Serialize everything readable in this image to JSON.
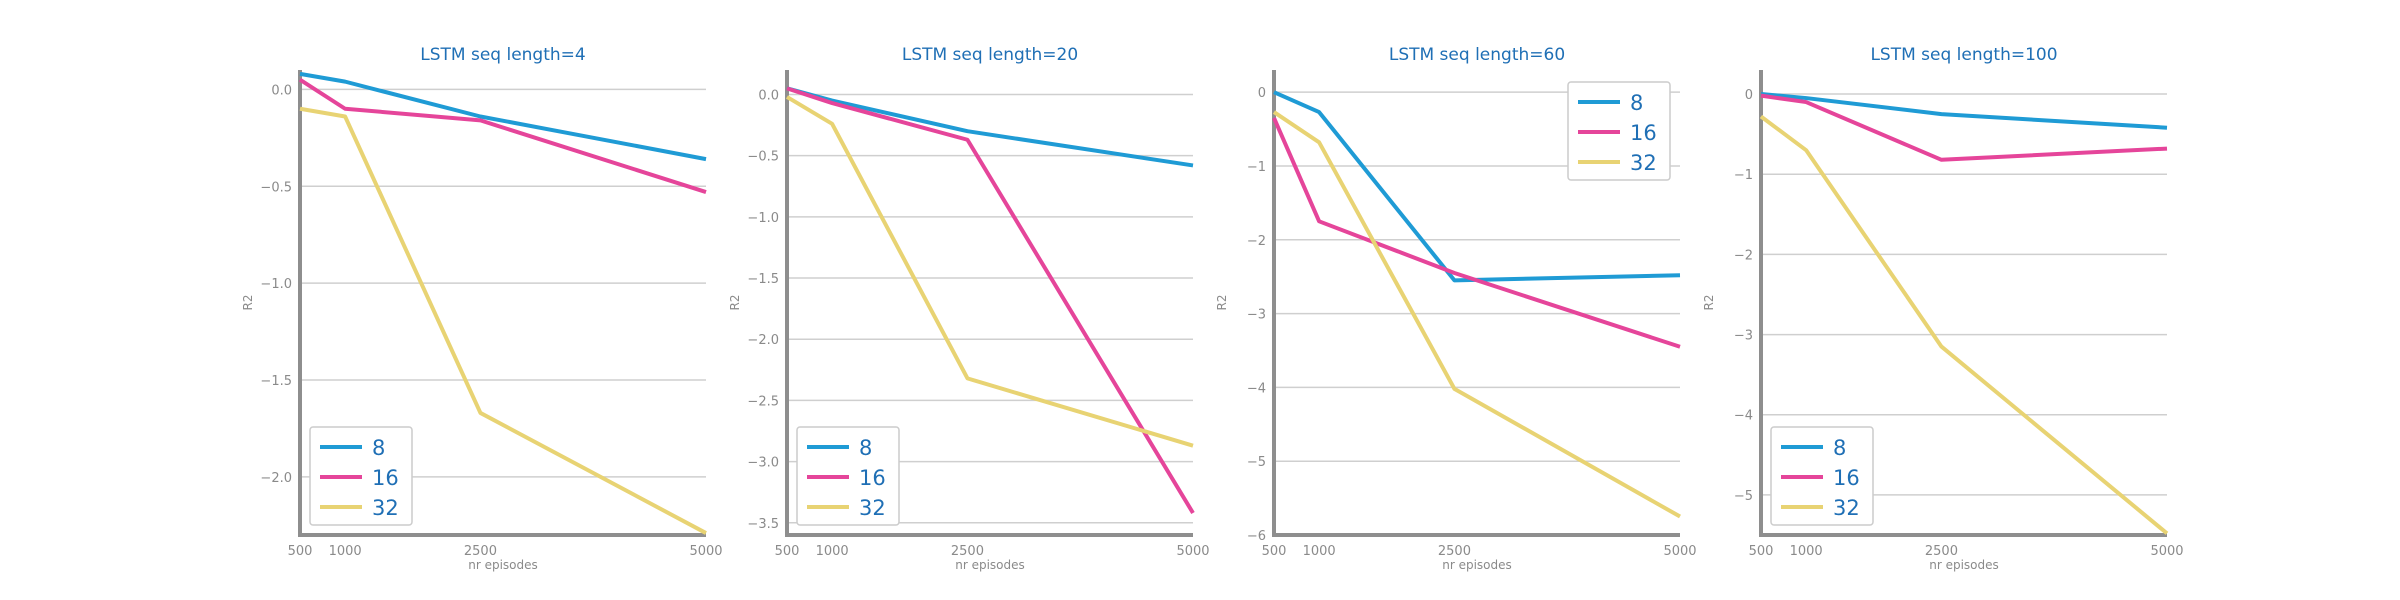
{
  "chart_data": [
    {
      "type": "line",
      "title": "LSTM seq length=4",
      "xlabel": "nr episodes",
      "ylabel": "R2",
      "x": [
        500,
        1000,
        2500,
        5000
      ],
      "xticks": [
        "500",
        "1000",
        "2500",
        "5000"
      ],
      "xlim": [
        500,
        5000
      ],
      "ylim": [
        -2.3,
        0.1
      ],
      "yticks": [
        0.0,
        -0.5,
        -1.0,
        -1.5,
        -2.0
      ],
      "ytick_labels": [
        "0.0",
        "−0.5",
        "−1.0",
        "−1.5",
        "−2.0"
      ],
      "grid": "horizontal",
      "legend": "lower-left",
      "series": [
        {
          "name": "8",
          "color": "#1f9bd5",
          "values": [
            0.08,
            0.04,
            -0.14,
            -0.36
          ]
        },
        {
          "name": "16",
          "color": "#e5459a",
          "values": [
            0.05,
            -0.1,
            -0.16,
            -0.53
          ]
        },
        {
          "name": "32",
          "color": "#e8d373",
          "values": [
            -0.1,
            -0.14,
            -1.67,
            -2.29
          ]
        }
      ]
    },
    {
      "type": "line",
      "title": "LSTM seq length=20",
      "xlabel": "nr episodes",
      "ylabel": "R2",
      "x": [
        500,
        1000,
        2500,
        5000
      ],
      "xticks": [
        "500",
        "1000",
        "2500",
        "5000"
      ],
      "xlim": [
        500,
        5000
      ],
      "ylim": [
        -3.6,
        0.2
      ],
      "yticks": [
        0.0,
        -0.5,
        -1.0,
        -1.5,
        -2.0,
        -2.5,
        -3.0,
        -3.5
      ],
      "ytick_labels": [
        "0.0",
        "−0.5",
        "−1.0",
        "−1.5",
        "−2.0",
        "−2.5",
        "−3.0",
        "−3.5"
      ],
      "grid": "horizontal",
      "legend": "lower-left",
      "series": [
        {
          "name": "8",
          "color": "#1f9bd5",
          "values": [
            0.05,
            -0.05,
            -0.3,
            -0.58
          ]
        },
        {
          "name": "16",
          "color": "#e5459a",
          "values": [
            0.05,
            -0.07,
            -0.37,
            -3.42
          ]
        },
        {
          "name": "32",
          "color": "#e8d373",
          "values": [
            -0.02,
            -0.24,
            -2.32,
            -2.87
          ]
        }
      ]
    },
    {
      "type": "line",
      "title": "LSTM seq length=60",
      "xlabel": "nr episodes",
      "ylabel": "R2",
      "x": [
        500,
        1000,
        2500,
        5000
      ],
      "xticks": [
        "500",
        "1000",
        "2500",
        "5000"
      ],
      "xlim": [
        500,
        5000
      ],
      "ylim": [
        -6.0,
        0.3
      ],
      "yticks": [
        0,
        -1,
        -2,
        -3,
        -4,
        -5,
        -6
      ],
      "ytick_labels": [
        "0",
        "−1",
        "−2",
        "−3",
        "−4",
        "−5",
        "−6"
      ],
      "grid": "horizontal",
      "legend": "upper-right",
      "series": [
        {
          "name": "8",
          "color": "#1f9bd5",
          "values": [
            0.0,
            -0.27,
            -2.55,
            -2.48
          ]
        },
        {
          "name": "16",
          "color": "#e5459a",
          "values": [
            -0.35,
            -1.75,
            -2.45,
            -3.45
          ]
        },
        {
          "name": "32",
          "color": "#e8d373",
          "values": [
            -0.27,
            -0.68,
            -4.02,
            -5.75
          ]
        }
      ]
    },
    {
      "type": "line",
      "title": "LSTM seq length=100",
      "xlabel": "nr episodes",
      "ylabel": "R2",
      "x": [
        500,
        1000,
        2500,
        5000
      ],
      "xticks": [
        "500",
        "1000",
        "2500",
        "5000"
      ],
      "xlim": [
        500,
        5000
      ],
      "ylim": [
        -5.5,
        0.3
      ],
      "yticks": [
        0,
        -1,
        -2,
        -3,
        -4,
        -5
      ],
      "ytick_labels": [
        "0",
        "−1",
        "−2",
        "−3",
        "−4",
        "−5"
      ],
      "grid": "horizontal",
      "legend": "lower-left",
      "series": [
        {
          "name": "8",
          "color": "#1f9bd5",
          "values": [
            0.0,
            -0.05,
            -0.25,
            -0.42
          ]
        },
        {
          "name": "16",
          "color": "#e5459a",
          "values": [
            -0.02,
            -0.1,
            -0.82,
            -0.68
          ]
        },
        {
          "name": "32",
          "color": "#e8d373",
          "values": [
            -0.28,
            -0.7,
            -3.15,
            -5.48
          ]
        }
      ]
    }
  ]
}
